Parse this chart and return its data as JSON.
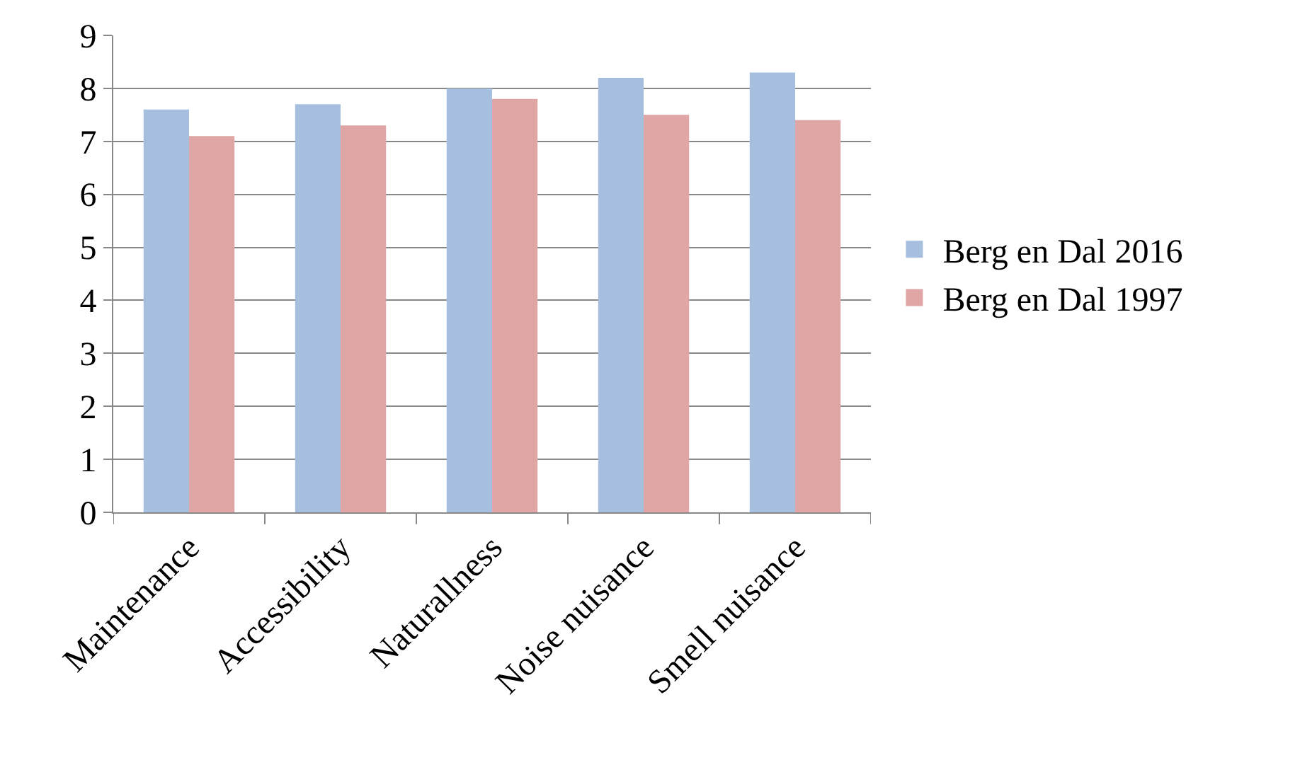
{
  "chart_data": {
    "type": "bar",
    "categories": [
      "Maintenance",
      "Accessibility",
      "Naturallness",
      "Noise nuisance",
      "Smell nuisance"
    ],
    "series": [
      {
        "name": "Berg en Dal 2016",
        "color": "#a6bfde",
        "values": [
          7.6,
          7.7,
          8.0,
          8.2,
          8.3
        ]
      },
      {
        "name": "Berg en Dal 1997",
        "color": "#e0a6a5",
        "values": [
          7.1,
          7.3,
          7.8,
          7.5,
          7.4
        ]
      }
    ],
    "ylim": [
      0,
      9
    ],
    "yticks": [
      0,
      1,
      2,
      3,
      4,
      5,
      6,
      7,
      8,
      9
    ],
    "grid": "y",
    "legend": "right"
  }
}
